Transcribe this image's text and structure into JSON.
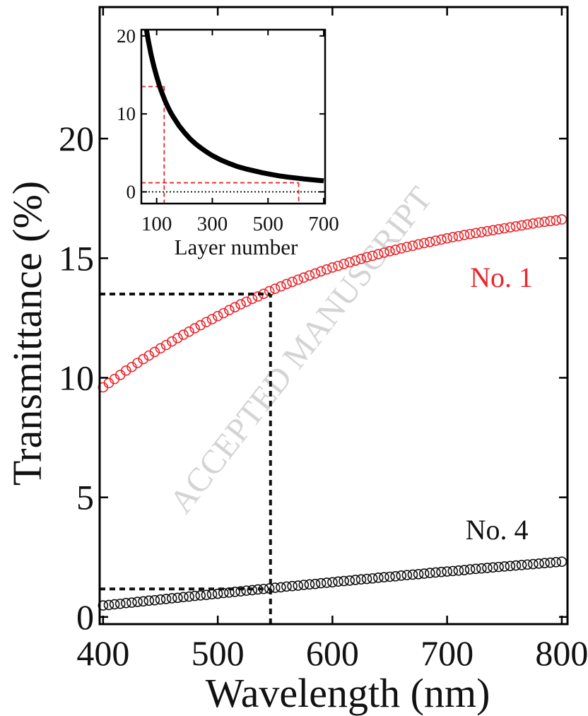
{
  "watermark": "ACCEPTED MANUSCRIPT",
  "chart_data": [
    {
      "id": "main",
      "type": "scatter",
      "xlabel": "Wavelength (nm)",
      "ylabel": "Transmittance (%)",
      "xlim": [
        397,
        805
      ],
      "ylim": [
        -0.3,
        25.5
      ],
      "xticks": [
        400,
        500,
        600,
        700,
        800
      ],
      "yticks": [
        0,
        5,
        10,
        15,
        20
      ],
      "grid": false,
      "series": [
        {
          "name": "No. 1",
          "color": "#e8262b",
          "marker": "open-circle",
          "points": [
            [
              400,
              9.6
            ],
            [
              405,
              9.78
            ],
            [
              410,
              9.95
            ],
            [
              415,
              10.12
            ],
            [
              420,
              10.3
            ],
            [
              425,
              10.45
            ],
            [
              430,
              10.62
            ],
            [
              435,
              10.78
            ],
            [
              440,
              10.93
            ],
            [
              445,
              11.08
            ],
            [
              450,
              11.23
            ],
            [
              455,
              11.37
            ],
            [
              460,
              11.52
            ],
            [
              465,
              11.66
            ],
            [
              470,
              11.8
            ],
            [
              475,
              11.93
            ],
            [
              480,
              12.07
            ],
            [
              485,
              12.2
            ],
            [
              490,
              12.33
            ],
            [
              495,
              12.45
            ],
            [
              500,
              12.58
            ],
            [
              505,
              12.7
            ],
            [
              510,
              12.83
            ],
            [
              515,
              12.95
            ],
            [
              520,
              13.07
            ],
            [
              525,
              13.18
            ],
            [
              530,
              13.3
            ],
            [
              535,
              13.4
            ],
            [
              540,
              13.51
            ],
            [
              545,
              13.62
            ],
            [
              550,
              13.72
            ],
            [
              555,
              13.82
            ],
            [
              560,
              13.92
            ],
            [
              565,
              14.01
            ],
            [
              570,
              14.1
            ],
            [
              575,
              14.19
            ],
            [
              580,
              14.28
            ],
            [
              585,
              14.36
            ],
            [
              590,
              14.45
            ],
            [
              595,
              14.53
            ],
            [
              600,
              14.61
            ],
            [
              605,
              14.68
            ],
            [
              610,
              14.76
            ],
            [
              615,
              14.83
            ],
            [
              620,
              14.9
            ],
            [
              625,
              14.97
            ],
            [
              630,
              15.04
            ],
            [
              635,
              15.1
            ],
            [
              640,
              15.17
            ],
            [
              645,
              15.23
            ],
            [
              650,
              15.29
            ],
            [
              655,
              15.35
            ],
            [
              660,
              15.41
            ],
            [
              665,
              15.47
            ],
            [
              670,
              15.52
            ],
            [
              675,
              15.58
            ],
            [
              680,
              15.63
            ],
            [
              685,
              15.68
            ],
            [
              690,
              15.73
            ],
            [
              695,
              15.78
            ],
            [
              700,
              15.83
            ],
            [
              705,
              15.88
            ],
            [
              710,
              15.92
            ],
            [
              715,
              15.97
            ],
            [
              720,
              16.01
            ],
            [
              725,
              16.05
            ],
            [
              730,
              16.09
            ],
            [
              735,
              16.13
            ],
            [
              740,
              16.17
            ],
            [
              745,
              16.21
            ],
            [
              750,
              16.25
            ],
            [
              755,
              16.29
            ],
            [
              760,
              16.33
            ],
            [
              765,
              16.37
            ],
            [
              770,
              16.41
            ],
            [
              775,
              16.45
            ],
            [
              780,
              16.49
            ],
            [
              785,
              16.52
            ],
            [
              790,
              16.55
            ],
            [
              795,
              16.58
            ],
            [
              800,
              16.62
            ]
          ]
        },
        {
          "name": "No. 4",
          "color": "#111111",
          "marker": "open-circle",
          "points": [
            [
              400,
              0.48
            ],
            [
              405,
              0.5
            ],
            [
              410,
              0.53
            ],
            [
              415,
              0.55
            ],
            [
              420,
              0.58
            ],
            [
              425,
              0.6
            ],
            [
              430,
              0.63
            ],
            [
              435,
              0.65
            ],
            [
              440,
              0.68
            ],
            [
              445,
              0.7
            ],
            [
              450,
              0.73
            ],
            [
              455,
              0.75
            ],
            [
              460,
              0.78
            ],
            [
              465,
              0.8
            ],
            [
              470,
              0.83
            ],
            [
              475,
              0.85
            ],
            [
              480,
              0.88
            ],
            [
              485,
              0.9
            ],
            [
              490,
              0.92
            ],
            [
              495,
              0.95
            ],
            [
              500,
              0.97
            ],
            [
              505,
              1.0
            ],
            [
              510,
              1.02
            ],
            [
              515,
              1.05
            ],
            [
              520,
              1.07
            ],
            [
              525,
              1.1
            ],
            [
              530,
              1.12
            ],
            [
              535,
              1.15
            ],
            [
              540,
              1.17
            ],
            [
              545,
              1.19
            ],
            [
              550,
              1.22
            ],
            [
              555,
              1.24
            ],
            [
              560,
              1.27
            ],
            [
              565,
              1.29
            ],
            [
              570,
              1.31
            ],
            [
              575,
              1.34
            ],
            [
              580,
              1.36
            ],
            [
              585,
              1.38
            ],
            [
              590,
              1.41
            ],
            [
              595,
              1.43
            ],
            [
              600,
              1.45
            ],
            [
              605,
              1.48
            ],
            [
              610,
              1.5
            ],
            [
              615,
              1.52
            ],
            [
              620,
              1.55
            ],
            [
              625,
              1.57
            ],
            [
              630,
              1.59
            ],
            [
              635,
              1.61
            ],
            [
              640,
              1.64
            ],
            [
              645,
              1.66
            ],
            [
              650,
              1.68
            ],
            [
              655,
              1.7
            ],
            [
              660,
              1.73
            ],
            [
              665,
              1.75
            ],
            [
              670,
              1.77
            ],
            [
              675,
              1.79
            ],
            [
              680,
              1.81
            ],
            [
              685,
              1.84
            ],
            [
              690,
              1.86
            ],
            [
              695,
              1.88
            ],
            [
              700,
              1.9
            ],
            [
              705,
              1.92
            ],
            [
              710,
              1.94
            ],
            [
              715,
              1.96
            ],
            [
              720,
              1.99
            ],
            [
              725,
              2.01
            ],
            [
              730,
              2.03
            ],
            [
              735,
              2.05
            ],
            [
              740,
              2.07
            ],
            [
              745,
              2.09
            ],
            [
              750,
              2.11
            ],
            [
              755,
              2.13
            ],
            [
              760,
              2.15
            ],
            [
              765,
              2.17
            ],
            [
              770,
              2.19
            ],
            [
              775,
              2.21
            ],
            [
              780,
              2.23
            ],
            [
              785,
              2.25
            ],
            [
              790,
              2.27
            ],
            [
              795,
              2.29
            ],
            [
              800,
              2.31
            ]
          ]
        }
      ],
      "series_labels": [
        {
          "text": "No. 1",
          "color": "#e8262b",
          "at": [
            720,
            13.8
          ]
        },
        {
          "text": "No. 4",
          "color": "#111111",
          "at": [
            716,
            3.25
          ]
        }
      ],
      "guide_lines": {
        "color": "#111111",
        "style": "dotted",
        "wavelength": 546,
        "levels": [
          13.5,
          1.17
        ]
      }
    },
    {
      "id": "inset",
      "type": "line",
      "xlabel": "Layer number",
      "ylabel": "",
      "xlim": [
        45,
        705
      ],
      "ylim": [
        -1.5,
        20.8
      ],
      "xticks": [
        100,
        300,
        500,
        700
      ],
      "yticks": [
        0,
        10,
        20
      ],
      "series": [
        {
          "color": "#000000",
          "x": [
            60,
            70,
            80,
            90,
            100,
            110,
            120,
            130,
            140,
            150,
            160,
            180,
            200,
            220,
            240,
            260,
            280,
            300,
            330,
            360,
            390,
            420,
            450,
            480,
            510,
            540,
            570,
            600,
            630,
            660,
            690,
            700
          ],
          "y": [
            21.5,
            19.4,
            17.6,
            16.1,
            14.8,
            13.6,
            12.6,
            11.7,
            10.9,
            10.2,
            9.6,
            8.5,
            7.6,
            6.8,
            6.15,
            5.6,
            5.1,
            4.65,
            4.1,
            3.65,
            3.25,
            2.95,
            2.7,
            2.45,
            2.25,
            2.05,
            1.9,
            1.78,
            1.65,
            1.55,
            1.45,
            1.42
          ]
        }
      ],
      "zero_line": {
        "color": "#111111",
        "style": "dotted",
        "y": 0
      },
      "guide_lines": {
        "color": "#e8262b",
        "style": "dashed",
        "points": [
          [
            127,
            13.5
          ],
          [
            610,
            1.17
          ]
        ]
      }
    }
  ]
}
